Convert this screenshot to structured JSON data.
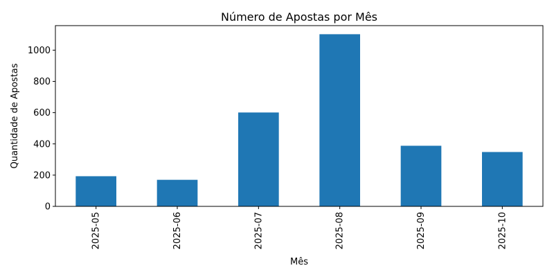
{
  "chart_data": {
    "type": "bar",
    "title": "Número de Apostas por Mês",
    "xlabel": "Mês",
    "ylabel": "Quantidade de Apostas",
    "categories": [
      "2025-05",
      "2025-06",
      "2025-07",
      "2025-08",
      "2025-09",
      "2025-10"
    ],
    "values": [
      193,
      170,
      601,
      1102,
      388,
      348
    ],
    "ylim": [
      0,
      1157
    ],
    "yticks": [
      0,
      200,
      400,
      600,
      800,
      1000
    ],
    "bar_color": "#1f77b4",
    "grid": false,
    "legend": "none"
  }
}
